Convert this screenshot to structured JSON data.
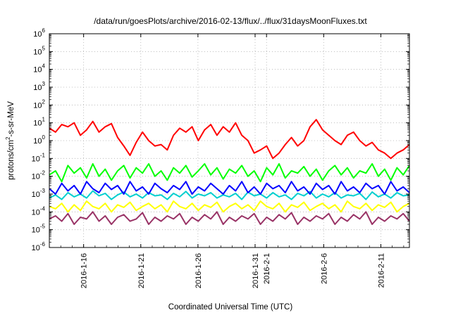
{
  "chart_data": {
    "type": "line",
    "title": "/data/run/goesPlots/archive/2016-02-13/flux/../flux/31daysMoonFluxes.txt",
    "xlabel": "Coordinated Universal Time (UTC)",
    "ylabel_parts": [
      "protons/cm",
      "2",
      "-s-sr-MeV"
    ],
    "y_scale": "log",
    "ylim": [
      1e-06,
      1000000.0
    ],
    "y_tick_exponents": [
      "-6",
      "-5",
      "-4",
      "-3",
      "-2",
      "-1",
      "0",
      "1",
      "2",
      "3",
      "4",
      "5",
      "6"
    ],
    "y_tick_base": "10",
    "x_range": [
      "2016-01-13",
      "2016-02-14"
    ],
    "x_ticks": [
      {
        "day": 3,
        "label": "2016-1-16"
      },
      {
        "day": 8,
        "label": "2016-1-21"
      },
      {
        "day": 13,
        "label": "2016-1-26"
      },
      {
        "day": 18,
        "label": "2016-1-31"
      },
      {
        "day": 19,
        "label": "2016-2-1"
      },
      {
        "day": 24,
        "label": "2016-2-6"
      },
      {
        "day": 29,
        "label": "2016-2-11"
      }
    ],
    "grid": true,
    "series": [
      {
        "color": "#ff0000",
        "values": [
          5,
          3,
          8,
          6,
          10,
          2,
          4,
          12,
          3,
          6,
          9,
          1.5,
          0.5,
          0.15,
          0.8,
          3,
          1,
          0.5,
          0.6,
          0.3,
          2,
          5,
          3,
          6,
          1,
          4,
          8,
          2,
          6,
          3,
          10,
          2,
          1,
          0.2,
          0.3,
          0.5,
          0.1,
          0.2,
          0.6,
          1.5,
          0.5,
          1,
          6,
          15,
          4,
          2,
          1,
          0.6,
          2,
          3,
          1,
          0.5,
          0.8,
          0.3,
          0.2,
          0.1,
          0.2,
          0.3,
          0.6
        ]
      },
      {
        "color": "#00ff00",
        "values": [
          0.012,
          0.02,
          0.005,
          0.04,
          0.015,
          0.03,
          0.008,
          0.05,
          0.01,
          0.025,
          0.006,
          0.02,
          0.04,
          0.008,
          0.03,
          0.015,
          0.05,
          0.01,
          0.02,
          0.006,
          0.03,
          0.015,
          0.04,
          0.009,
          0.02,
          0.05,
          0.012,
          0.03,
          0.007,
          0.025,
          0.015,
          0.04,
          0.01,
          0.02,
          0.005,
          0.03,
          0.012,
          0.05,
          0.008,
          0.02,
          0.015,
          0.035,
          0.01,
          0.025,
          0.006,
          0.02,
          0.04,
          0.012,
          0.03,
          0.008,
          0.02,
          0.015,
          0.05,
          0.01,
          0.025,
          0.006,
          0.03,
          0.012,
          0.04
        ]
      },
      {
        "color": "#0000ff",
        "values": [
          0.002,
          0.001,
          0.004,
          0.0015,
          0.003,
          0.001,
          0.005,
          0.002,
          0.0012,
          0.004,
          0.0018,
          0.003,
          0.001,
          0.005,
          0.0015,
          0.0025,
          0.001,
          0.004,
          0.002,
          0.0012,
          0.003,
          0.0018,
          0.005,
          0.001,
          0.0025,
          0.0015,
          0.004,
          0.002,
          0.001,
          0.003,
          0.0015,
          0.005,
          0.0012,
          0.0025,
          0.001,
          0.004,
          0.002,
          0.003,
          0.0012,
          0.005,
          0.0015,
          0.0025,
          0.001,
          0.004,
          0.0018,
          0.003,
          0.001,
          0.005,
          0.0015,
          0.0025,
          0.0012,
          0.004,
          0.002,
          0.003,
          0.001,
          0.005,
          0.0015,
          0.0025,
          0.0012
        ]
      },
      {
        "color": "#00cfcf",
        "values": [
          0.0006,
          0.0009,
          0.0005,
          0.0012,
          0.0007,
          0.001,
          0.0006,
          0.0015,
          0.0008,
          0.0011,
          0.0005,
          0.0009,
          0.0013,
          0.0007,
          0.001,
          0.0006,
          0.0012,
          0.0008,
          0.0009,
          0.0005,
          0.0011,
          0.0007,
          0.0014,
          0.0006,
          0.001,
          0.0008,
          0.0012,
          0.0006,
          0.0009,
          0.0007,
          0.0011,
          0.0005,
          0.0013,
          0.0008,
          0.001,
          0.0006,
          0.0012,
          0.0007,
          0.0009,
          0.0005,
          0.0011,
          0.0008,
          0.0014,
          0.0006,
          0.001,
          0.0007,
          0.0012,
          0.0006,
          0.0009,
          0.0008,
          0.0011,
          0.0005,
          0.0013,
          0.0007,
          0.001,
          0.0006,
          0.0012,
          0.0008,
          0.0009
        ]
      },
      {
        "color": "#ffff00",
        "values": [
          0.0002,
          0.00015,
          0.0003,
          0.0001,
          0.00025,
          0.00012,
          0.0004,
          0.0002,
          0.00015,
          0.0003,
          0.0001,
          0.00025,
          0.00018,
          0.00035,
          0.00012,
          0.0002,
          0.0003,
          0.00015,
          0.00025,
          0.0001,
          0.0004,
          0.0002,
          0.00015,
          0.0003,
          0.00012,
          0.00025,
          0.00018,
          0.00035,
          0.0001,
          0.0002,
          0.0003,
          0.00015,
          0.00025,
          0.00012,
          0.0004,
          0.0002,
          0.00015,
          0.0003,
          0.0001,
          0.00025,
          0.00018,
          0.00035,
          0.00012,
          0.0002,
          0.0003,
          0.00015,
          0.00025,
          0.0001,
          0.0004,
          0.0002,
          0.00015,
          0.0003,
          0.00012,
          0.00025,
          0.00018,
          0.00035,
          0.0001,
          0.0002,
          0.0003
        ]
      },
      {
        "color": "#993366",
        "values": [
          4e-05,
          6e-05,
          3e-05,
          8e-05,
          2e-05,
          5e-05,
          4e-05,
          0.0001,
          3e-05,
          6e-05,
          2e-05,
          5e-05,
          7e-05,
          3e-05,
          4e-05,
          9e-05,
          2e-05,
          5e-05,
          3e-05,
          6e-05,
          4e-05,
          8e-05,
          2e-05,
          5e-05,
          3e-05,
          7e-05,
          4e-05,
          0.0001,
          2e-05,
          5e-05,
          3e-05,
          6e-05,
          4e-05,
          8e-05,
          2e-05,
          5e-05,
          3e-05,
          7e-05,
          4e-05,
          9e-05,
          2e-05,
          5e-05,
          3e-05,
          6e-05,
          4e-05,
          8e-05,
          2e-05,
          5e-05,
          3e-05,
          7e-05,
          4e-05,
          0.0001,
          2e-05,
          5e-05,
          3e-05,
          6e-05,
          4e-05,
          8e-05,
          3e-05
        ]
      }
    ]
  }
}
